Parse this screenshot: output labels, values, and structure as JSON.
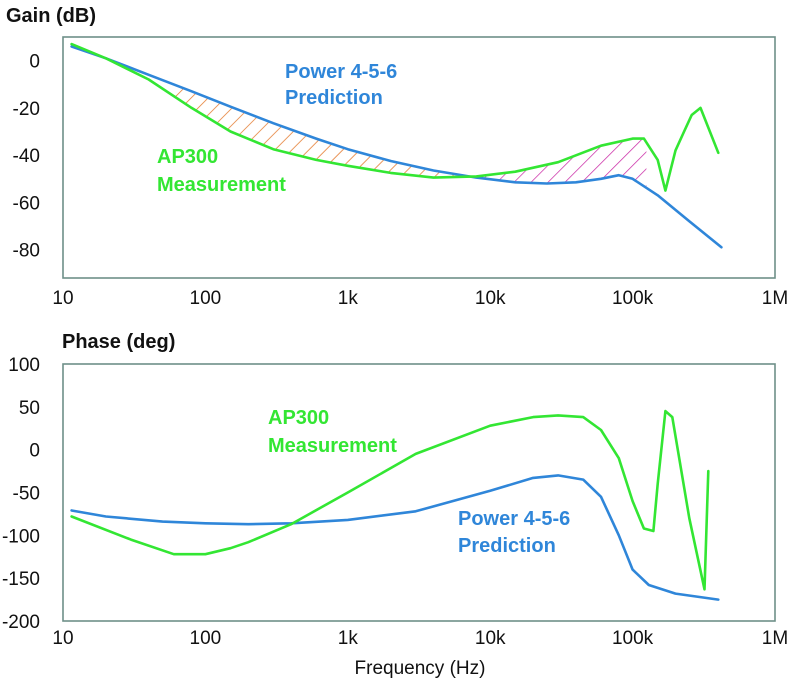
{
  "colors": {
    "measurement": "#33e633",
    "prediction": "#2f86d9",
    "hatch_predicted_higher": "#e4782a",
    "hatch_measured_higher": "#cc33aa"
  },
  "chart_data": [
    {
      "type": "line",
      "title": "Gain (dB)",
      "xlabel": "",
      "ylabel": "",
      "xscale": "log",
      "xlim": [
        10,
        1000000
      ],
      "ylim": [
        -92,
        10
      ],
      "xticks": [
        10,
        100,
        1000,
        10000,
        100000,
        1000000
      ],
      "xtick_labels": [
        "10",
        "100",
        "1k",
        "10k",
        "100k",
        "1M"
      ],
      "yticks": [
        0,
        -20,
        -40,
        -60,
        -80
      ],
      "ytick_labels": [
        "0",
        "-20",
        "-40",
        "-60",
        "-80"
      ],
      "grid": false,
      "series": [
        {
          "name": "Power 4-5-6 Prediction",
          "color_key": "prediction",
          "x": [
            11.5,
            20,
            40,
            80,
            150,
            300,
            600,
            1000,
            2000,
            4000,
            8000,
            15000,
            25000,
            40000,
            60000,
            80000,
            100000,
            150000,
            250000,
            420000
          ],
          "y": [
            6,
            1,
            -6,
            -13,
            -19.5,
            -26.5,
            -33,
            -37.5,
            -42.5,
            -46.5,
            -49.5,
            -51.5,
            -52,
            -51.5,
            -50,
            -48.5,
            -50,
            -57,
            -68,
            -79
          ]
        },
        {
          "name": "AP300 Measurement",
          "color_key": "measurement",
          "x": [
            11.5,
            20,
            40,
            80,
            150,
            300,
            600,
            1000,
            2000,
            4000,
            8000,
            15000,
            30000,
            60000,
            100000,
            120000,
            150000,
            170000,
            200000,
            230000,
            260000,
            300000,
            400000
          ],
          "y": [
            7,
            1,
            -8,
            -20,
            -30,
            -37.5,
            -42,
            -44.5,
            -47.5,
            -49.5,
            -49,
            -47,
            -43,
            -36,
            -33,
            -33,
            -42,
            -55,
            -38,
            -30,
            -23,
            -20,
            -39
          ]
        }
      ],
      "annotations": [
        {
          "text": "Power 4-5-6",
          "series": "prediction"
        },
        {
          "text": "Prediction",
          "series": "prediction"
        },
        {
          "text": "AP300",
          "series": "measurement"
        },
        {
          "text": "Measurement",
          "series": "measurement"
        }
      ]
    },
    {
      "type": "line",
      "title": "Phase (deg)",
      "xlabel": "Frequency (Hz)",
      "ylabel": "",
      "xscale": "log",
      "xlim": [
        10,
        1000000
      ],
      "ylim": [
        -200,
        100
      ],
      "xticks": [
        10,
        100,
        1000,
        10000,
        100000,
        1000000
      ],
      "xtick_labels": [
        "10",
        "100",
        "1k",
        "10k",
        "100k",
        "1M"
      ],
      "yticks": [
        100,
        50,
        0,
        -50,
        -100,
        -150,
        -200
      ],
      "ytick_labels": [
        "100",
        "50",
        "0",
        "-50",
        "-100",
        "-150",
        "-200"
      ],
      "grid": false,
      "series": [
        {
          "name": "Power 4-5-6 Prediction",
          "color_key": "prediction",
          "x": [
            11.5,
            20,
            50,
            100,
            200,
            400,
            1000,
            3000,
            10000,
            20000,
            30000,
            45000,
            60000,
            80000,
            100000,
            130000,
            200000,
            400000
          ],
          "y": [
            -71,
            -78,
            -84,
            -86,
            -87,
            -86,
            -82,
            -72,
            -48,
            -33,
            -30,
            -35,
            -55,
            -100,
            -140,
            -158,
            -168,
            -175
          ]
        },
        {
          "name": "AP300 Measurement",
          "color_key": "measurement",
          "x": [
            11.5,
            30,
            60,
            100,
            150,
            200,
            400,
            1000,
            3000,
            10000,
            20000,
            30000,
            45000,
            60000,
            80000,
            100000,
            120000,
            140000,
            150000,
            170000,
            190000,
            250000,
            320000,
            340000
          ],
          "y": [
            -78,
            -105,
            -122,
            -122,
            -115,
            -108,
            -87,
            -50,
            -5,
            28,
            38,
            40,
            38,
            23,
            -10,
            -60,
            -92,
            -95,
            -40,
            45,
            38,
            -80,
            -163,
            -25
          ]
        }
      ],
      "annotations": [
        {
          "text": "AP300",
          "series": "measurement"
        },
        {
          "text": "Measurement",
          "series": "measurement"
        },
        {
          "text": "Power 4-5-6",
          "series": "prediction"
        },
        {
          "text": "Prediction",
          "series": "prediction"
        }
      ]
    }
  ]
}
